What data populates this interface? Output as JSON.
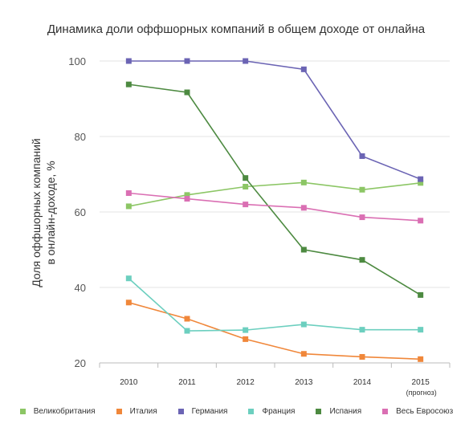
{
  "chart_data": {
    "type": "line",
    "title": "Динамика доли оффшорных компаний в общем доходе от онлайна",
    "ylabel_line1": "Доля оффшорных компаний",
    "ylabel_line2": "в онлайн-доходе, %",
    "xlabel": "",
    "categories": [
      "2010",
      "2011",
      "2012",
      "2013",
      "2014",
      "2015"
    ],
    "category_sublabels": [
      "",
      "",
      "",
      "",
      "",
      "(прогноз)"
    ],
    "ylim": [
      20,
      100
    ],
    "yticks": [
      20,
      40,
      60,
      80,
      100
    ],
    "grid": "horizontal",
    "legend_position": "bottom",
    "series": [
      {
        "name": "Великобритания",
        "color": "#8cc665",
        "values": [
          61.5,
          64.5,
          66.7,
          67.8,
          65.9,
          67.7
        ]
      },
      {
        "name": "Италия",
        "color": "#f0873a",
        "values": [
          36,
          31.7,
          26.3,
          22.4,
          21.6,
          21
        ]
      },
      {
        "name": "Германия",
        "color": "#6b64b4",
        "values": [
          100,
          100,
          100,
          97.8,
          74.8,
          68.7
        ]
      },
      {
        "name": "Франция",
        "color": "#6ccfbf",
        "values": [
          42.4,
          28.5,
          28.7,
          30.2,
          28.8,
          28.8
        ]
      },
      {
        "name": "Испания",
        "color": "#4d8a41",
        "values": [
          93.8,
          91.7,
          69,
          50,
          47.3,
          38
        ]
      },
      {
        "name": "Весь Евросоюз",
        "color": "#da6fb3",
        "values": [
          65,
          63.5,
          62,
          61.1,
          58.6,
          57.7
        ]
      }
    ]
  }
}
